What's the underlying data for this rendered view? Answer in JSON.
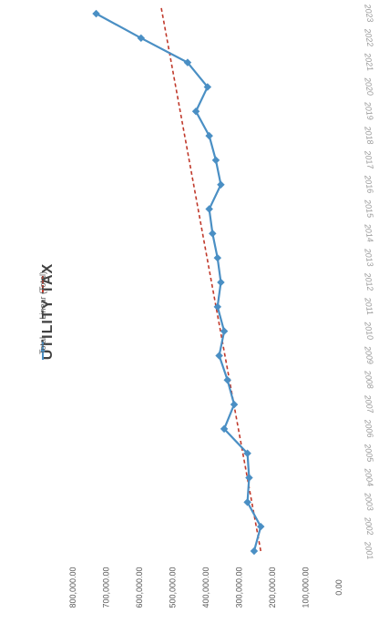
{
  "chart_data": {
    "type": "line",
    "title": "UTILITY TAX",
    "categories": [
      "2001",
      "2002",
      "2003",
      "2004",
      "2005",
      "2006",
      "2007",
      "2008",
      "2009",
      "2010",
      "2011",
      "2012",
      "2013",
      "2014",
      "2015",
      "2016",
      "2017",
      "2018",
      "2019",
      "2020",
      "2021",
      "2022",
      "2023"
    ],
    "series": [
      {
        "name": "Total",
        "color": "#4a8fc4",
        "values": [
          255000,
          235000,
          275000,
          270000,
          275000,
          345000,
          315000,
          335000,
          360000,
          345000,
          365000,
          355000,
          365000,
          380000,
          390000,
          355000,
          370000,
          390000,
          430000,
          395000,
          455000,
          595000,
          730000
        ]
      }
    ],
    "trendline": {
      "name": "Linear (Total)",
      "color": "#c0392b",
      "start": 235000,
      "end": 535000
    },
    "yticks": [
      "0.00",
      "100,000.00",
      "200,000.00",
      "300,000.00",
      "400,000.00",
      "500,000.00",
      "600,000.00",
      "700,000.00",
      "800,000.00"
    ],
    "ylim": [
      0,
      800000
    ],
    "grid": false,
    "legend_position": "top"
  }
}
